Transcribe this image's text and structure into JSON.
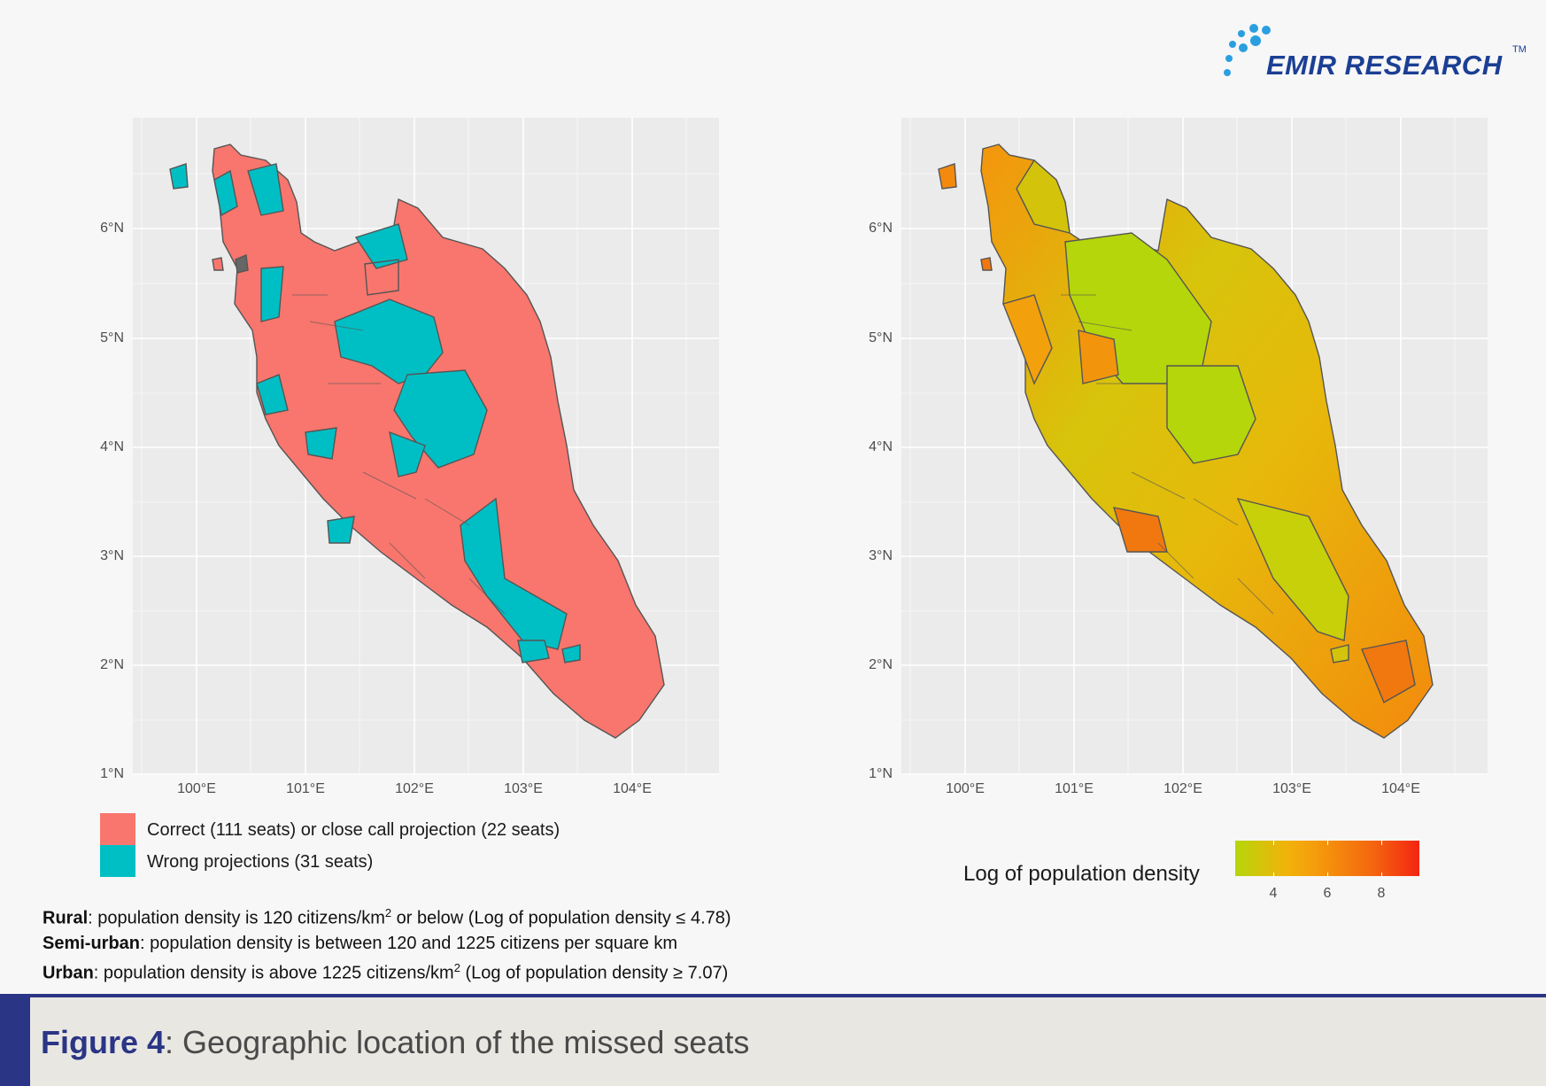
{
  "logo": {
    "text": "EMIR RESEARCH",
    "tm": "TM",
    "color": "#1b3f94",
    "dot_color": "#2a9fe0"
  },
  "map_left": {
    "axis": {
      "y_ticks": [
        "6°N",
        "5°N",
        "4°N",
        "3°N",
        "2°N",
        "1°N"
      ],
      "x_ticks": [
        "100°E",
        "101°E",
        "102°E",
        "103°E",
        "104°E"
      ],
      "lat_range": [
        1,
        6
      ],
      "lon_range": [
        100,
        104
      ]
    },
    "colors": {
      "correct": "#f8766d",
      "wrong": "#00bfc4",
      "border": "#555555",
      "background": "#ebebeb"
    },
    "legend": [
      {
        "label": "Correct (111 seats) or close call projection (22 seats)",
        "color": "#f8766d"
      },
      {
        "label": "Wrong projections (31 seats)",
        "color": "#00bfc4"
      }
    ]
  },
  "map_right": {
    "axis": {
      "y_ticks": [
        "6°N",
        "5°N",
        "4°N",
        "3°N",
        "2°N",
        "1°N"
      ],
      "x_ticks": [
        "100°E",
        "101°E",
        "102°E",
        "103°E",
        "104°E"
      ],
      "lat_range": [
        1,
        6
      ],
      "lon_range": [
        100,
        104
      ]
    },
    "legend": {
      "title": "Log of population density",
      "ticks": [
        "4",
        "6",
        "8"
      ],
      "low_color": "#b5d60a",
      "high_color": "#f42512"
    }
  },
  "notes": {
    "rural_label": "Rural",
    "rural_text_a": ": population density is 120 citizens/km",
    "rural_sup": "2",
    "rural_text_b": " or below (Log of population density ≤ 4.78)",
    "semi_label": "Semi-urban",
    "semi_text": ": population density is between 120 and 1225 citizens per square km",
    "urban_label": "Urban",
    "urban_text_a": ": population density is above 1225 citizens/km",
    "urban_sup": "2",
    "urban_text_b": " (Log of population density ≥ 7.07)"
  },
  "caption": {
    "figure_label": "Figure 4",
    "colon": ":",
    "text": " Geographic location of the missed seats",
    "accent_color": "#2a3585"
  }
}
